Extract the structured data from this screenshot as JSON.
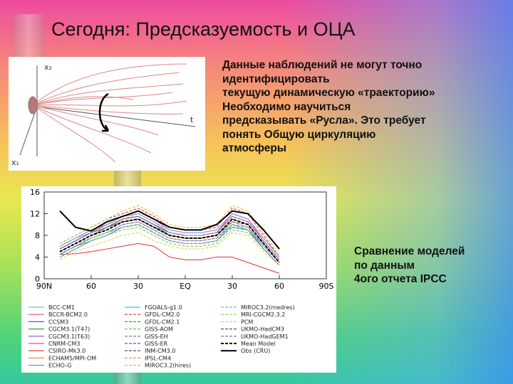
{
  "title": "Сегодня: Предсказуемость и ОЦА",
  "text": [
    "Данные наблюдений не могут точно",
    "идентифицировать",
    "текущую динамическую «траекторию»",
    "Необходимо научиться",
    "предсказывать «Русла». Это требует",
    "понять Общую циркуляцию",
    "атмосферы"
  ],
  "caption": [
    "Сравнение моделей",
    "по данным",
    "4ого отчета IPCC"
  ],
  "diagram": {
    "y_label": "x₂",
    "t_label": "t",
    "x_label": "x₁"
  },
  "chart_data": {
    "type": "line",
    "x": [
      80,
      70,
      60,
      50,
      40,
      30,
      20,
      10,
      0,
      -10,
      -20,
      -30,
      -40,
      -50,
      -60
    ],
    "xlim": [
      90,
      -90
    ],
    "xticks": [
      {
        "value": 90,
        "label": "90N"
      },
      60,
      30,
      {
        "value": 0,
        "label": "EQ"
      },
      {
        "value": -30,
        "label": "30"
      },
      {
        "value": -60,
        "label": "60"
      },
      {
        "value": -90,
        "label": "90S"
      }
    ],
    "ylim": [
      0,
      16
    ],
    "yticks": [
      0,
      4,
      8,
      12,
      16
    ],
    "series": [
      {
        "name": "BCC-CM1",
        "color": "#8fbf8f",
        "dash": false,
        "values": [
          4.5,
          6,
          7.5,
          8.5,
          10,
          10.5,
          9,
          7.5,
          7,
          7,
          7.5,
          10.5,
          9.5,
          6,
          3
        ]
      },
      {
        "name": "BCCR-BCM2.0",
        "color": "#e05090",
        "dash": false,
        "values": [
          5.5,
          7,
          8.5,
          10,
          11.5,
          12,
          10.5,
          8.5,
          8,
          8,
          8.5,
          12,
          11,
          7,
          3.5
        ]
      },
      {
        "name": "CCSM3",
        "color": "#4060d0",
        "dash": false,
        "values": [
          4,
          5.5,
          7,
          8,
          9.5,
          10,
          8.5,
          7,
          6.5,
          6.5,
          7,
          10,
          9,
          5.5,
          2.5
        ]
      },
      {
        "name": "CGCM3.1(T47)",
        "color": "#30a030",
        "dash": false,
        "values": [
          5,
          6.5,
          8,
          9.5,
          11,
          11.5,
          10,
          8,
          7.5,
          7.5,
          8,
          11,
          10,
          6.5,
          3
        ]
      },
      {
        "name": "CGCM3.1(T63)",
        "color": "#9050c0",
        "dash": false,
        "values": [
          5.5,
          7,
          8.5,
          9.5,
          11,
          11.5,
          10,
          8.5,
          8,
          8,
          8.5,
          11.5,
          10.5,
          7,
          3.5
        ]
      },
      {
        "name": "CNRM-CM3",
        "color": "#e040e0",
        "dash": false,
        "values": [
          6,
          7.5,
          9,
          10,
          11.5,
          12.5,
          11,
          9,
          8.5,
          8.5,
          9,
          12,
          11,
          7.5,
          4
        ]
      },
      {
        "name": "CSIRO-Mk3.0",
        "color": "#e03030",
        "dash": false,
        "values": [
          4.5,
          4.6,
          5,
          5.5,
          6,
          6.5,
          6,
          4,
          3.5,
          3.5,
          4,
          4,
          3,
          2,
          1
        ]
      },
      {
        "name": "ECHAM5/MPI-OM",
        "color": "#f09030",
        "dash": false,
        "values": [
          5,
          6.5,
          8,
          9,
          10.5,
          11,
          9.5,
          8,
          7.5,
          7.5,
          8,
          11,
          10,
          6.5,
          3
        ]
      },
      {
        "name": "ECHO-G",
        "color": "#6090e0",
        "dash": false,
        "values": [
          4.5,
          6,
          7,
          8,
          9.5,
          10,
          8.5,
          7,
          6.5,
          6.5,
          7,
          10,
          9,
          6,
          3
        ]
      },
      {
        "name": "FGOALS-g1.0",
        "color": "#40c8d8",
        "dash": false,
        "values": [
          6,
          7.5,
          8.5,
          9.5,
          10.5,
          11,
          9.5,
          8.5,
          8,
          8,
          8.5,
          9.5,
          9,
          6.5,
          3
        ]
      },
      {
        "name": "GFDL-CM2.0",
        "color": "#e03030",
        "dash": true,
        "values": [
          6.5,
          8,
          9.5,
          11,
          12,
          13,
          11.5,
          9.5,
          9,
          9,
          9.5,
          13,
          12,
          8,
          4
        ]
      },
      {
        "name": "GFDL-CM2.1",
        "color": "#30a030",
        "dash": true,
        "values": [
          5,
          6.5,
          8,
          9.5,
          10.5,
          11,
          9.5,
          8,
          7.5,
          7.5,
          8,
          11,
          10,
          6.5,
          3
        ]
      },
      {
        "name": "GISS-AOM",
        "color": "#70c070",
        "dash": true,
        "values": [
          4,
          5.5,
          7,
          8,
          9,
          9.5,
          8,
          6.5,
          6,
          6,
          6.5,
          9,
          8.5,
          5.5,
          2.5
        ]
      },
      {
        "name": "GISS-EH",
        "color": "#9050c0",
        "dash": true,
        "values": [
          5,
          6.5,
          7.5,
          8.5,
          10,
          10.5,
          9,
          7.5,
          7,
          7,
          7.5,
          10,
          9.5,
          6,
          3
        ]
      },
      {
        "name": "GISS-ER",
        "color": "#4060d0",
        "dash": true,
        "values": [
          4.5,
          6,
          7.5,
          8.5,
          9.5,
          10,
          8.5,
          7,
          6.5,
          6.5,
          7,
          9.5,
          9,
          5.5,
          2.5
        ]
      },
      {
        "name": "INM-CM3.0",
        "color": "#404040",
        "dash": true,
        "values": [
          5.5,
          7,
          8.5,
          9.5,
          10.5,
          11,
          9.5,
          8,
          7.5,
          7.5,
          8,
          10.5,
          10,
          6.5,
          3
        ]
      },
      {
        "name": "IPSL-CM4",
        "color": "#f09030",
        "dash": true,
        "values": [
          6,
          7.5,
          9,
          10,
          11,
          12,
          10.5,
          8.5,
          8,
          8,
          8.5,
          11.5,
          10.5,
          7,
          3.5
        ]
      },
      {
        "name": "MIROC3.2(hires)",
        "color": "#d8c030",
        "dash": true,
        "values": [
          6.5,
          8,
          9.5,
          11,
          12.5,
          13.5,
          12,
          10,
          9.5,
          9.5,
          10,
          13.5,
          12.5,
          8.5,
          4.5
        ]
      },
      {
        "name": "MIROC3.2(medres)",
        "color": "#40c8d8",
        "dash": true,
        "values": [
          6,
          7.5,
          9,
          10,
          11.5,
          12,
          10.5,
          9,
          8.5,
          8.5,
          9,
          12,
          11,
          7.5,
          4
        ]
      },
      {
        "name": "MRI-CGCM2.3.2",
        "color": "#90d040",
        "dash": true,
        "values": [
          5,
          6.5,
          7.5,
          8.5,
          9.5,
          10,
          8.5,
          7,
          6.5,
          6.5,
          7,
          10,
          9,
          6,
          3
        ]
      },
      {
        "name": "PCM",
        "color": "#e8d040",
        "dash": true,
        "values": [
          3.5,
          5,
          6,
          7,
          8,
          8.5,
          7,
          6,
          5.5,
          5.5,
          6,
          8.5,
          8,
          5,
          2.5
        ]
      },
      {
        "name": "UKMO-HadCM3",
        "color": "#505050",
        "dash": true,
        "values": [
          5,
          6.5,
          8,
          9,
          10.5,
          11,
          9.5,
          8,
          7.5,
          7.5,
          8,
          11,
          10,
          6.5,
          3
        ]
      },
      {
        "name": "UKMO-HadGEM1",
        "color": "#9050c0",
        "dash": true,
        "values": [
          5.5,
          7,
          8.5,
          9.5,
          11,
          11.5,
          10,
          8.5,
          8,
          8,
          8.5,
          11.5,
          10.5,
          7,
          3.5
        ]
      },
      {
        "name": "Mean Model",
        "color": "#000000",
        "dash": true,
        "values": [
          5,
          6.5,
          8,
          9,
          10.5,
          11,
          9.5,
          8,
          7.5,
          7.5,
          8,
          11,
          10,
          6.5,
          3
        ]
      },
      {
        "name": "Obs (CRU)",
        "color": "#000000",
        "dash": false,
        "values": [
          12.5,
          9.5,
          8.8,
          10.5,
          11.5,
          12.5,
          11,
          9.5,
          9,
          9,
          10,
          12.5,
          12,
          9,
          5.5
        ]
      }
    ]
  }
}
